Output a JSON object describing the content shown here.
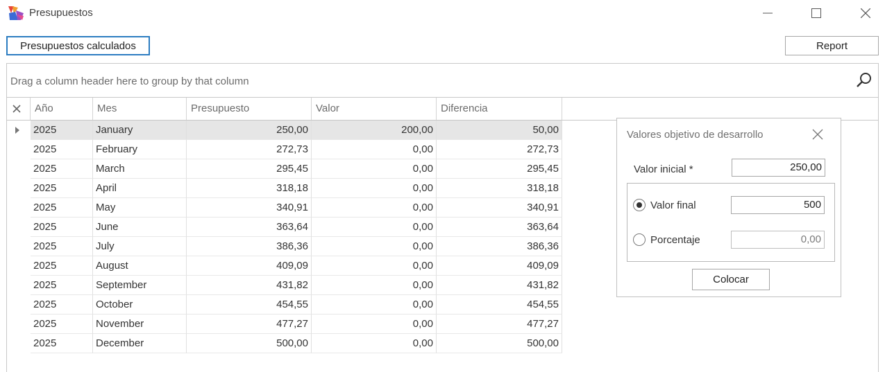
{
  "window": {
    "title": "Presupuestos",
    "icons": {
      "app": "app-logo-icon",
      "minimize": "minimize-icon",
      "maximize": "maximize-icon",
      "close": "close-icon"
    }
  },
  "toolbar": {
    "calculated_label": "Presupuestos calculados",
    "report_label": "Report"
  },
  "grid": {
    "group_panel_text": "Drag a column header here to group by that column",
    "search_icon": "search-icon",
    "columns": [
      "Año",
      "Mes",
      "Presupuesto",
      "Valor",
      "Diferencia"
    ],
    "rows": [
      [
        "2025",
        "January",
        "250,00",
        "200,00",
        "50,00"
      ],
      [
        "2025",
        "February",
        "272,73",
        "0,00",
        "272,73"
      ],
      [
        "2025",
        "March",
        "295,45",
        "0,00",
        "295,45"
      ],
      [
        "2025",
        "April",
        "318,18",
        "0,00",
        "318,18"
      ],
      [
        "2025",
        "May",
        "340,91",
        "0,00",
        "340,91"
      ],
      [
        "2025",
        "June",
        "363,64",
        "0,00",
        "363,64"
      ],
      [
        "2025",
        "July",
        "386,36",
        "0,00",
        "386,36"
      ],
      [
        "2025",
        "August",
        "409,09",
        "0,00",
        "409,09"
      ],
      [
        "2025",
        "September",
        "431,82",
        "0,00",
        "431,82"
      ],
      [
        "2025",
        "October",
        "454,55",
        "0,00",
        "454,55"
      ],
      [
        "2025",
        "November",
        "477,27",
        "0,00",
        "477,27"
      ],
      [
        "2025",
        "December",
        "500,00",
        "0,00",
        "500,00"
      ]
    ]
  },
  "panel": {
    "title": "Valores objetivo de desarrollo",
    "initial_label": "Valor inicial *",
    "initial_value": "250,00",
    "final_label": "Valor final",
    "final_value": "500",
    "final_selected": true,
    "percent_label": "Porcentaje",
    "percent_value": "0,00",
    "apply_label": "Colocar"
  },
  "colors": {
    "primary_border": "#2b7cc1",
    "selected_row": "#e6e6e6"
  }
}
